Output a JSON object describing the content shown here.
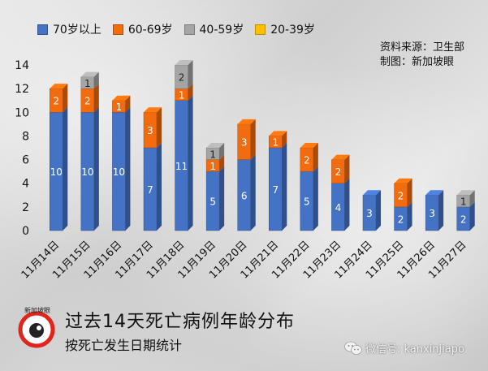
{
  "legend": [
    {
      "label": "70岁以上",
      "color": "#4472c4"
    },
    {
      "label": "60-69岁",
      "color": "#f26b0f"
    },
    {
      "label": "40-59岁",
      "color": "#a5a5a5"
    },
    {
      "label": "20-39岁",
      "color": "#ffc000"
    }
  ],
  "source": {
    "line1": "资料来源：卫生部",
    "line2": "制图：新加坡眼"
  },
  "title": {
    "main": "过去14天死亡病例年龄分布",
    "sub": "按死亡发生日期统计"
  },
  "logo": {
    "text": "新加坡眼"
  },
  "watermark": {
    "text": "微信号: kanxinjiapo"
  },
  "chart_data": {
    "type": "bar",
    "stacked": true,
    "categories": [
      "11月14日",
      "11月15日",
      "11月16日",
      "11月17日",
      "11月18日",
      "11月19日",
      "11月20日",
      "11月21日",
      "11月22日",
      "11月23日",
      "11月24日",
      "11月25日",
      "11月26日",
      "11月27日"
    ],
    "series": [
      {
        "name": "70岁以上",
        "color": "#4472c4",
        "values": [
          10,
          10,
          10,
          7,
          11,
          5,
          6,
          7,
          5,
          4,
          3,
          2,
          3,
          2
        ]
      },
      {
        "name": "60-69岁",
        "color": "#f26b0f",
        "values": [
          2,
          2,
          1,
          3,
          1,
          1,
          3,
          1,
          2,
          2,
          0,
          2,
          0,
          0
        ]
      },
      {
        "name": "40-59岁",
        "color": "#a5a5a5",
        "values": [
          0,
          1,
          0,
          0,
          2,
          1,
          0,
          0,
          0,
          0,
          0,
          0,
          0,
          1
        ]
      },
      {
        "name": "20-39岁",
        "color": "#ffc000",
        "values": [
          0,
          0,
          0,
          0,
          0,
          0,
          0,
          0,
          0,
          0,
          0,
          0,
          0,
          0
        ]
      }
    ],
    "yticks": [
      0,
      2,
      4,
      6,
      8,
      10,
      12,
      14
    ],
    "ylim": [
      0,
      14
    ]
  }
}
